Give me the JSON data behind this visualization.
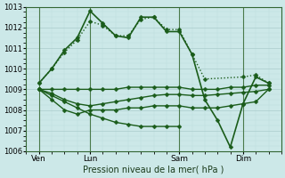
{
  "xlabel": "Pression niveau de la mer( hPa )",
  "bg_color": "#cce8e8",
  "grid_color_major": "#aacccc",
  "grid_color_minor": "#bbdddd",
  "line_color": "#1a5c1a",
  "ylim": [
    1006,
    1013
  ],
  "xlim": [
    0,
    20
  ],
  "yticks": [
    1006,
    1007,
    1008,
    1009,
    1010,
    1011,
    1012,
    1013
  ],
  "xtick_labels": [
    "Ven",
    "Lun",
    "Sam",
    "Dim"
  ],
  "xtick_positions": [
    1,
    5,
    12,
    17
  ],
  "vline_positions": [
    1,
    5,
    12,
    17
  ],
  "lines": [
    {
      "x": [
        1,
        2,
        3,
        4,
        5,
        6,
        7,
        8,
        9,
        10,
        11,
        12,
        13,
        14,
        17,
        18,
        19
      ],
      "y": [
        1009.3,
        1010.0,
        1010.8,
        1011.4,
        1012.3,
        1012.1,
        1011.6,
        1011.6,
        1012.4,
        1012.5,
        1011.9,
        1011.9,
        1010.7,
        1009.5,
        1009.6,
        1009.7,
        1009.3
      ],
      "style": ":",
      "marker": "D",
      "markersize": 2.5,
      "linewidth": 1.0
    },
    {
      "x": [
        1,
        2,
        3,
        4,
        5,
        6,
        7,
        8,
        9,
        10,
        11,
        12,
        13,
        14,
        15,
        16,
        17,
        18,
        19
      ],
      "y": [
        1009.3,
        1010.0,
        1010.9,
        1011.5,
        1012.8,
        1012.2,
        1011.6,
        1011.5,
        1012.5,
        1012.5,
        1011.8,
        1011.8,
        1010.7,
        1008.5,
        1007.5,
        1006.2,
        1008.3,
        1009.6,
        1009.3
      ],
      "style": "-",
      "marker": "D",
      "markersize": 2.5,
      "linewidth": 1.2
    },
    {
      "x": [
        1,
        2,
        3,
        4,
        5,
        6,
        7,
        8,
        9,
        10,
        11,
        12,
        13,
        14,
        15,
        16,
        17,
        18,
        19
      ],
      "y": [
        1009.0,
        1009.0,
        1009.0,
        1009.0,
        1009.0,
        1009.0,
        1009.0,
        1009.1,
        1009.1,
        1009.1,
        1009.1,
        1009.1,
        1009.0,
        1009.0,
        1009.0,
        1009.1,
        1009.1,
        1009.2,
        1009.2
      ],
      "style": "-",
      "marker": "D",
      "markersize": 2.5,
      "linewidth": 1.0
    },
    {
      "x": [
        1,
        2,
        3,
        4,
        5,
        6,
        7,
        8,
        9,
        10,
        11,
        12,
        13,
        14,
        15,
        16,
        17,
        18,
        19
      ],
      "y": [
        1009.0,
        1008.8,
        1008.5,
        1008.3,
        1008.2,
        1008.3,
        1008.4,
        1008.5,
        1008.6,
        1008.7,
        1008.75,
        1008.75,
        1008.7,
        1008.7,
        1008.75,
        1008.8,
        1008.85,
        1008.9,
        1009.0
      ],
      "style": "-",
      "marker": "D",
      "markersize": 2.5,
      "linewidth": 1.0
    },
    {
      "x": [
        1,
        2,
        3,
        4,
        5,
        6,
        7,
        8,
        9,
        10,
        11,
        12,
        13,
        14,
        15,
        16,
        17,
        18,
        19
      ],
      "y": [
        1009.0,
        1008.5,
        1008.0,
        1007.8,
        1008.0,
        1008.0,
        1008.0,
        1008.1,
        1008.1,
        1008.2,
        1008.2,
        1008.2,
        1008.1,
        1008.1,
        1008.1,
        1008.2,
        1008.3,
        1008.4,
        1009.0
      ],
      "style": "-",
      "marker": "D",
      "markersize": 2.5,
      "linewidth": 1.0
    },
    {
      "x": [
        1,
        2,
        3,
        4,
        5,
        6,
        7,
        8,
        9,
        10,
        11,
        12
      ],
      "y": [
        1009.0,
        1008.7,
        1008.4,
        1008.1,
        1007.8,
        1007.6,
        1007.4,
        1007.3,
        1007.2,
        1007.2,
        1007.2,
        1007.2
      ],
      "style": "-",
      "marker": "D",
      "markersize": 2.5,
      "linewidth": 1.0
    }
  ]
}
